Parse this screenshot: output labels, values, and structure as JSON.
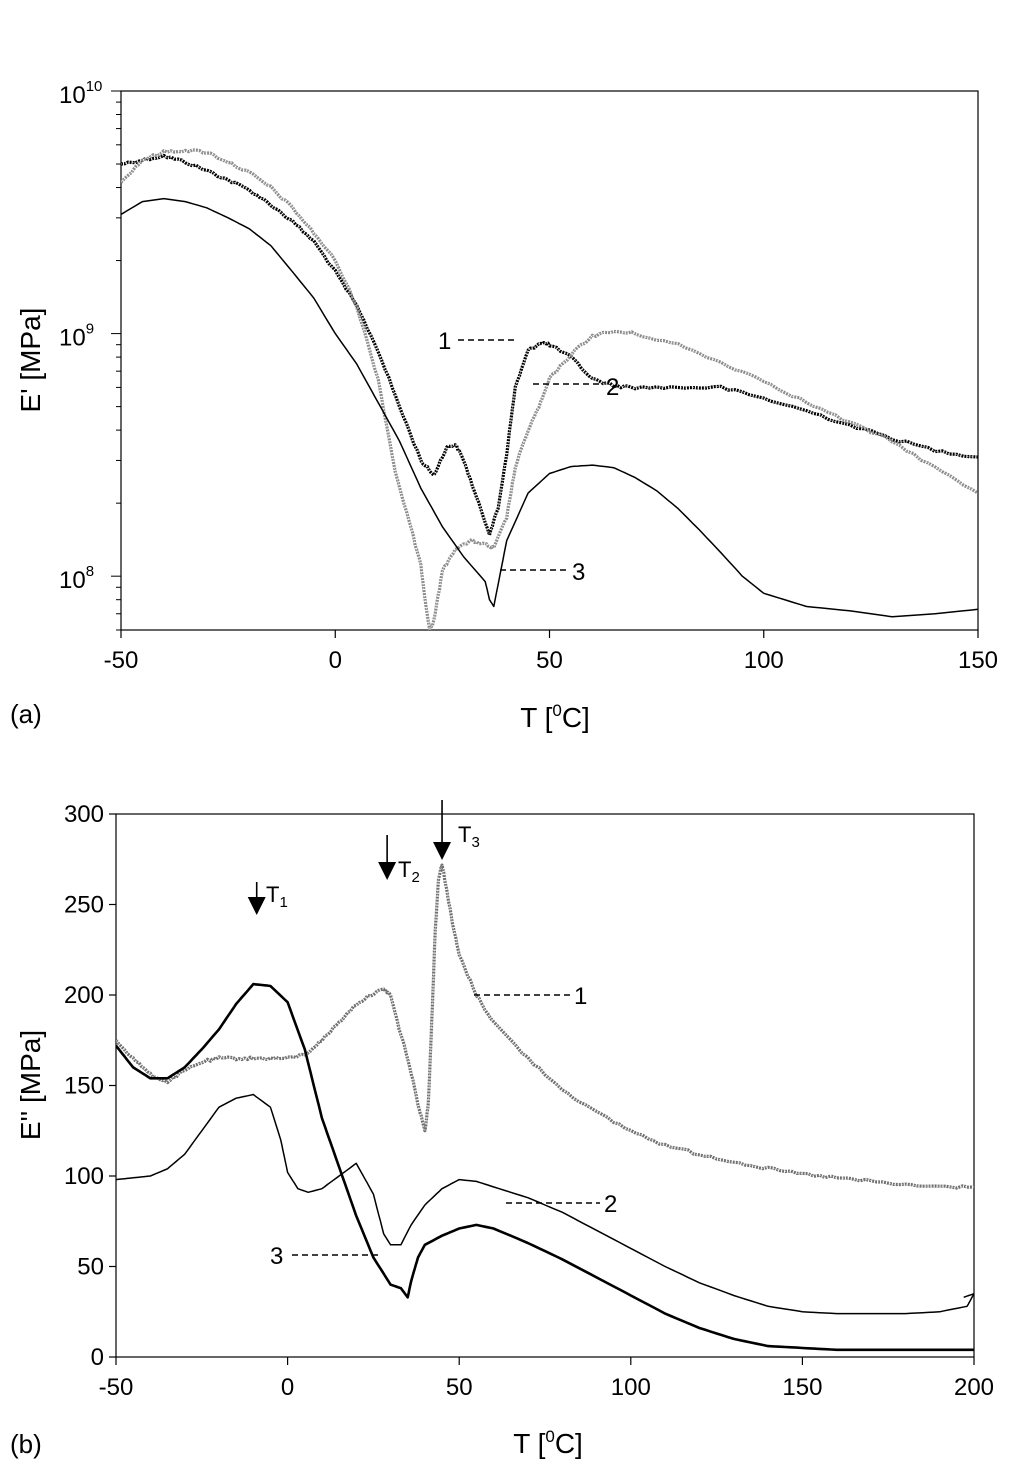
{
  "chart_data": [
    {
      "panel_label": "(a)",
      "type": "line",
      "xlabel": "T [",
      "xlabel_sup": "0",
      "xlabel_tail": "C]",
      "ylabel": "E' [MPa]",
      "xlim": [
        -50,
        150
      ],
      "ylim": [
        60000000,
        10000000000
      ],
      "yscale": "log",
      "xticks": [
        -50,
        0,
        50,
        100,
        150
      ],
      "xtick_labels": [
        "-50",
        "0",
        "50",
        "100",
        "150"
      ],
      "yticks_major": [
        {
          "value": 100000000,
          "base": "10",
          "exp": "8"
        },
        {
          "value": 1000000000,
          "base": "10",
          "exp": "9"
        },
        {
          "value": 10000000000,
          "base": "10",
          "exp": "10"
        }
      ],
      "grid": false,
      "series": [
        {
          "name": "1",
          "color": "#000000",
          "style": "noisy-markers",
          "label_at": [
            40,
            700000000
          ],
          "x": [
            -50,
            -45,
            -40,
            -35,
            -30,
            -25,
            -20,
            -15,
            -10,
            -5,
            0,
            5,
            10,
            15,
            20,
            23,
            26,
            28,
            30,
            33,
            36,
            38,
            40,
            42,
            45,
            48,
            50,
            55,
            60,
            65,
            70,
            80,
            90,
            100,
            110,
            120,
            130,
            140,
            150
          ],
          "y": [
            5000000000,
            5200000000,
            5400000000,
            5100000000,
            4700000000,
            4300000000,
            3900000000,
            3400000000,
            2900000000,
            2400000000,
            1800000000,
            1300000000,
            850000000,
            500000000,
            300000000,
            260000000,
            340000000,
            350000000,
            300000000,
            210000000,
            150000000,
            190000000,
            320000000,
            600000000,
            850000000,
            920000000,
            900000000,
            800000000,
            650000000,
            610000000,
            600000000,
            600000000,
            600000000,
            540000000,
            480000000,
            420000000,
            370000000,
            330000000,
            310000000
          ]
        },
        {
          "name": "2",
          "color": "#8c8c8c",
          "style": "noisy-markers",
          "label_at": [
            65,
            450000000
          ],
          "x": [
            -50,
            -45,
            -40,
            -35,
            -30,
            -25,
            -20,
            -15,
            -10,
            -5,
            0,
            5,
            10,
            14,
            18,
            20,
            21,
            22,
            23,
            25,
            28,
            32,
            35,
            37,
            40,
            42,
            45,
            48,
            50,
            55,
            60,
            65,
            70,
            80,
            90,
            100,
            110,
            120,
            130,
            140,
            150
          ],
          "y": [
            4200000000,
            5200000000,
            5600000000,
            5700000000,
            5600000000,
            5100000000,
            4600000000,
            4000000000,
            3300000000,
            2600000000,
            2000000000,
            1300000000,
            650000000,
            270000000,
            150000000,
            110000000,
            80000000,
            60000000,
            65000000,
            105000000,
            130000000,
            140000000,
            135000000,
            130000000,
            175000000,
            280000000,
            400000000,
            520000000,
            650000000,
            820000000,
            980000000,
            1020000000,
            1000000000,
            900000000,
            760000000,
            640000000,
            520000000,
            430000000,
            360000000,
            280000000,
            220000000
          ]
        },
        {
          "name": "3",
          "color": "#000000",
          "style": "solid",
          "label_at": [
            60,
            90000000
          ],
          "x": [
            -50,
            -45,
            -40,
            -35,
            -30,
            -25,
            -20,
            -15,
            -10,
            -5,
            0,
            5,
            10,
            15,
            20,
            25,
            30,
            35,
            36,
            37,
            40,
            45,
            50,
            55,
            60,
            65,
            70,
            75,
            80,
            85,
            90,
            95,
            100,
            110,
            120,
            130,
            140,
            150
          ],
          "y": [
            3100000000,
            3500000000,
            3600000000,
            3500000000,
            3300000000,
            3000000000,
            2700000000,
            2300000000,
            1800000000,
            1400000000,
            1000000000,
            750000000,
            520000000,
            360000000,
            230000000,
            160000000,
            120000000,
            95000000,
            80000000,
            75000000,
            140000000,
            220000000,
            265000000,
            283000000,
            287000000,
            280000000,
            255000000,
            225000000,
            190000000,
            155000000,
            125000000,
            100000000,
            85000000,
            75000000,
            72000000,
            68000000,
            70000000,
            73000000
          ]
        }
      ]
    },
    {
      "panel_label": "(b)",
      "type": "line",
      "xlabel": "T [",
      "xlabel_sup": "0",
      "xlabel_tail": "C]",
      "ylabel": "E'' [MPa]",
      "xlim": [
        -50,
        200
      ],
      "ylim": [
        0,
        300
      ],
      "yscale": "linear",
      "xticks": [
        -50,
        0,
        50,
        100,
        150,
        200
      ],
      "xtick_labels": [
        "-50",
        "0",
        "50",
        "100",
        "150",
        "200"
      ],
      "yticks": [
        0,
        50,
        100,
        150,
        200,
        250,
        300
      ],
      "ytick_labels": [
        "0",
        "50",
        "100",
        "150",
        "200",
        "250",
        "300"
      ],
      "grid": false,
      "annotations": [
        {
          "label": "T",
          "sub": "1",
          "x": -9,
          "y": 245
        },
        {
          "label": "T",
          "sub": "2",
          "x": 29,
          "y": 225
        },
        {
          "label": "T",
          "sub": "3",
          "x": 45,
          "y": 288
        }
      ],
      "series": [
        {
          "name": "1",
          "color": "#707070",
          "style": "noisy-markers",
          "label_at": [
            130,
            198
          ],
          "x": [
            -50,
            -45,
            -40,
            -35,
            -30,
            -25,
            -20,
            -15,
            -10,
            -5,
            0,
            5,
            10,
            15,
            20,
            25,
            28,
            30,
            32,
            35,
            38,
            40,
            41,
            42,
            43,
            44,
            45,
            46,
            48,
            50,
            55,
            60,
            70,
            80,
            90,
            100,
            110,
            120,
            130,
            140,
            150,
            160,
            170,
            180,
            190,
            200
          ],
          "y": [
            175,
            165,
            156,
            152,
            158,
            163,
            165,
            165,
            165,
            165,
            165,
            167,
            175,
            185,
            195,
            201,
            203,
            200,
            185,
            165,
            140,
            125,
            140,
            185,
            235,
            265,
            272,
            262,
            240,
            222,
            200,
            185,
            165,
            148,
            135,
            125,
            117,
            112,
            108,
            104,
            101,
            99,
            97,
            95,
            94,
            94
          ]
        },
        {
          "name": "2",
          "color": "#000000",
          "style": "solid",
          "label_at": [
            135,
            86
          ],
          "x": [
            -50,
            -45,
            -40,
            -35,
            -30,
            -25,
            -20,
            -15,
            -10,
            -5,
            -2,
            0,
            3,
            6,
            10,
            15,
            20,
            25,
            28,
            30,
            33,
            36,
            40,
            45,
            50,
            55,
            60,
            70,
            80,
            90,
            100,
            110,
            120,
            130,
            140,
            150,
            160,
            170,
            180,
            190,
            198,
            200,
            197
          ],
          "y": [
            98,
            99,
            100,
            104,
            112,
            125,
            138,
            143,
            145,
            138,
            120,
            102,
            93,
            91,
            93,
            100,
            107,
            90,
            68,
            62,
            62,
            73,
            84,
            93,
            98,
            97,
            94,
            88,
            80,
            70,
            60,
            50,
            41,
            34,
            28,
            25,
            24,
            24,
            24,
            25,
            28,
            35,
            33
          ]
        },
        {
          "name": "3",
          "color": "#000000",
          "style": "thick",
          "label_at": [
            0,
            57
          ],
          "x": [
            -50,
            -45,
            -40,
            -35,
            -30,
            -25,
            -20,
            -15,
            -10,
            -5,
            0,
            5,
            10,
            15,
            20,
            25,
            28,
            30,
            33,
            35,
            36,
            38,
            40,
            45,
            50,
            55,
            60,
            70,
            80,
            90,
            100,
            110,
            120,
            130,
            140,
            150,
            160,
            170,
            180,
            190,
            200
          ],
          "y": [
            172,
            160,
            154,
            154,
            160,
            170,
            181,
            195,
            206,
            205,
            196,
            170,
            132,
            105,
            78,
            55,
            46,
            40,
            38,
            33,
            42,
            55,
            62,
            67,
            71,
            73,
            71,
            63,
            54,
            44,
            34,
            24,
            16,
            10,
            6,
            5,
            4,
            4,
            4,
            4,
            4
          ]
        }
      ]
    }
  ]
}
